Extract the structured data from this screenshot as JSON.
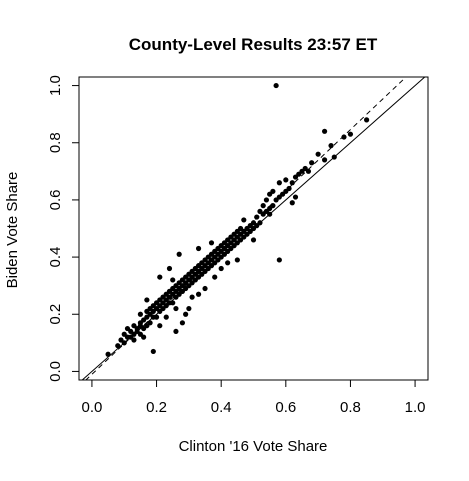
{
  "chart_data": {
    "type": "scatter",
    "title": "County-Level Results 23:57 ET",
    "xlabel": "Clinton '16 Vote Share",
    "ylabel": "Biden Vote Share",
    "xlim": [
      -0.04,
      1.04
    ],
    "ylim": [
      -0.03,
      1.03
    ],
    "x_ticks": [
      0.0,
      0.2,
      0.4,
      0.6,
      0.8,
      1.0
    ],
    "x_tick_labels": [
      "0.0",
      "0.2",
      "0.4",
      "0.6",
      "0.8",
      "1.0"
    ],
    "y_ticks": [
      0.0,
      0.2,
      0.4,
      0.6,
      0.8,
      1.0
    ],
    "y_tick_labels": [
      "0.0",
      "0.2",
      "0.4",
      "0.6",
      "0.8",
      "1.0"
    ],
    "grid": false,
    "legend": "none",
    "reference_lines": [
      {
        "style": "solid",
        "intercept": 0,
        "slope": 1
      },
      {
        "style": "dashed",
        "intercept": -0.01,
        "slope": 1.07
      }
    ],
    "point_color": "#000000",
    "points": [
      {
        "x": 0.05,
        "y": 0.06
      },
      {
        "x": 0.08,
        "y": 0.09
      },
      {
        "x": 0.09,
        "y": 0.11
      },
      {
        "x": 0.1,
        "y": 0.1
      },
      {
        "x": 0.1,
        "y": 0.13
      },
      {
        "x": 0.11,
        "y": 0.12
      },
      {
        "x": 0.11,
        "y": 0.15
      },
      {
        "x": 0.12,
        "y": 0.12
      },
      {
        "x": 0.12,
        "y": 0.14
      },
      {
        "x": 0.13,
        "y": 0.13
      },
      {
        "x": 0.13,
        "y": 0.16
      },
      {
        "x": 0.14,
        "y": 0.14
      },
      {
        "x": 0.14,
        "y": 0.15
      },
      {
        "x": 0.15,
        "y": 0.13
      },
      {
        "x": 0.15,
        "y": 0.16
      },
      {
        "x": 0.15,
        "y": 0.17
      },
      {
        "x": 0.16,
        "y": 0.15
      },
      {
        "x": 0.16,
        "y": 0.18
      },
      {
        "x": 0.17,
        "y": 0.16
      },
      {
        "x": 0.17,
        "y": 0.19
      },
      {
        "x": 0.17,
        "y": 0.21
      },
      {
        "x": 0.18,
        "y": 0.17
      },
      {
        "x": 0.18,
        "y": 0.2
      },
      {
        "x": 0.18,
        "y": 0.22
      },
      {
        "x": 0.19,
        "y": 0.19
      },
      {
        "x": 0.19,
        "y": 0.21
      },
      {
        "x": 0.19,
        "y": 0.23
      },
      {
        "x": 0.2,
        "y": 0.19
      },
      {
        "x": 0.2,
        "y": 0.22
      },
      {
        "x": 0.2,
        "y": 0.24
      },
      {
        "x": 0.21,
        "y": 0.21
      },
      {
        "x": 0.21,
        "y": 0.23
      },
      {
        "x": 0.21,
        "y": 0.25
      },
      {
        "x": 0.22,
        "y": 0.22
      },
      {
        "x": 0.22,
        "y": 0.24
      },
      {
        "x": 0.22,
        "y": 0.26
      },
      {
        "x": 0.23,
        "y": 0.23
      },
      {
        "x": 0.23,
        "y": 0.25
      },
      {
        "x": 0.23,
        "y": 0.27
      },
      {
        "x": 0.24,
        "y": 0.24
      },
      {
        "x": 0.24,
        "y": 0.26
      },
      {
        "x": 0.24,
        "y": 0.28
      },
      {
        "x": 0.25,
        "y": 0.24
      },
      {
        "x": 0.25,
        "y": 0.27
      },
      {
        "x": 0.25,
        "y": 0.29
      },
      {
        "x": 0.26,
        "y": 0.26
      },
      {
        "x": 0.26,
        "y": 0.28
      },
      {
        "x": 0.26,
        "y": 0.3
      },
      {
        "x": 0.27,
        "y": 0.27
      },
      {
        "x": 0.27,
        "y": 0.29
      },
      {
        "x": 0.27,
        "y": 0.31
      },
      {
        "x": 0.28,
        "y": 0.28
      },
      {
        "x": 0.28,
        "y": 0.3
      },
      {
        "x": 0.28,
        "y": 0.32
      },
      {
        "x": 0.29,
        "y": 0.29
      },
      {
        "x": 0.29,
        "y": 0.31
      },
      {
        "x": 0.29,
        "y": 0.33
      },
      {
        "x": 0.3,
        "y": 0.3
      },
      {
        "x": 0.3,
        "y": 0.32
      },
      {
        "x": 0.3,
        "y": 0.34
      },
      {
        "x": 0.31,
        "y": 0.31
      },
      {
        "x": 0.31,
        "y": 0.33
      },
      {
        "x": 0.31,
        "y": 0.35
      },
      {
        "x": 0.32,
        "y": 0.32
      },
      {
        "x": 0.32,
        "y": 0.34
      },
      {
        "x": 0.32,
        "y": 0.36
      },
      {
        "x": 0.33,
        "y": 0.33
      },
      {
        "x": 0.33,
        "y": 0.35
      },
      {
        "x": 0.33,
        "y": 0.37
      },
      {
        "x": 0.34,
        "y": 0.34
      },
      {
        "x": 0.34,
        "y": 0.36
      },
      {
        "x": 0.34,
        "y": 0.38
      },
      {
        "x": 0.35,
        "y": 0.35
      },
      {
        "x": 0.35,
        "y": 0.37
      },
      {
        "x": 0.35,
        "y": 0.39
      },
      {
        "x": 0.36,
        "y": 0.36
      },
      {
        "x": 0.36,
        "y": 0.38
      },
      {
        "x": 0.36,
        "y": 0.4
      },
      {
        "x": 0.37,
        "y": 0.37
      },
      {
        "x": 0.37,
        "y": 0.39
      },
      {
        "x": 0.37,
        "y": 0.41
      },
      {
        "x": 0.38,
        "y": 0.38
      },
      {
        "x": 0.38,
        "y": 0.4
      },
      {
        "x": 0.38,
        "y": 0.42
      },
      {
        "x": 0.39,
        "y": 0.39
      },
      {
        "x": 0.39,
        "y": 0.41
      },
      {
        "x": 0.39,
        "y": 0.43
      },
      {
        "x": 0.4,
        "y": 0.4
      },
      {
        "x": 0.4,
        "y": 0.42
      },
      {
        "x": 0.4,
        "y": 0.44
      },
      {
        "x": 0.41,
        "y": 0.41
      },
      {
        "x": 0.41,
        "y": 0.43
      },
      {
        "x": 0.41,
        "y": 0.45
      },
      {
        "x": 0.42,
        "y": 0.42
      },
      {
        "x": 0.42,
        "y": 0.44
      },
      {
        "x": 0.42,
        "y": 0.46
      },
      {
        "x": 0.43,
        "y": 0.43
      },
      {
        "x": 0.43,
        "y": 0.45
      },
      {
        "x": 0.43,
        "y": 0.47
      },
      {
        "x": 0.44,
        "y": 0.44
      },
      {
        "x": 0.44,
        "y": 0.46
      },
      {
        "x": 0.44,
        "y": 0.48
      },
      {
        "x": 0.45,
        "y": 0.45
      },
      {
        "x": 0.45,
        "y": 0.47
      },
      {
        "x": 0.45,
        "y": 0.49
      },
      {
        "x": 0.46,
        "y": 0.46
      },
      {
        "x": 0.46,
        "y": 0.48
      },
      {
        "x": 0.46,
        "y": 0.5
      },
      {
        "x": 0.47,
        "y": 0.47
      },
      {
        "x": 0.47,
        "y": 0.49
      },
      {
        "x": 0.48,
        "y": 0.48
      },
      {
        "x": 0.48,
        "y": 0.5
      },
      {
        "x": 0.49,
        "y": 0.49
      },
      {
        "x": 0.49,
        "y": 0.51
      },
      {
        "x": 0.5,
        "y": 0.5
      },
      {
        "x": 0.5,
        "y": 0.52
      },
      {
        "x": 0.51,
        "y": 0.51
      },
      {
        "x": 0.51,
        "y": 0.54
      },
      {
        "x": 0.52,
        "y": 0.52
      },
      {
        "x": 0.52,
        "y": 0.56
      },
      {
        "x": 0.53,
        "y": 0.55
      },
      {
        "x": 0.53,
        "y": 0.58
      },
      {
        "x": 0.54,
        "y": 0.56
      },
      {
        "x": 0.54,
        "y": 0.6
      },
      {
        "x": 0.55,
        "y": 0.57
      },
      {
        "x": 0.55,
        "y": 0.62
      },
      {
        "x": 0.56,
        "y": 0.58
      },
      {
        "x": 0.56,
        "y": 0.63
      },
      {
        "x": 0.57,
        "y": 0.6
      },
      {
        "x": 0.58,
        "y": 0.61
      },
      {
        "x": 0.58,
        "y": 0.66
      },
      {
        "x": 0.59,
        "y": 0.62
      },
      {
        "x": 0.6,
        "y": 0.63
      },
      {
        "x": 0.6,
        "y": 0.67
      },
      {
        "x": 0.61,
        "y": 0.64
      },
      {
        "x": 0.62,
        "y": 0.66
      },
      {
        "x": 0.63,
        "y": 0.68
      },
      {
        "x": 0.64,
        "y": 0.69
      },
      {
        "x": 0.65,
        "y": 0.7
      },
      {
        "x": 0.66,
        "y": 0.71
      },
      {
        "x": 0.67,
        "y": 0.7
      },
      {
        "x": 0.68,
        "y": 0.73
      },
      {
        "x": 0.7,
        "y": 0.76
      },
      {
        "x": 0.72,
        "y": 0.74
      },
      {
        "x": 0.74,
        "y": 0.79
      },
      {
        "x": 0.75,
        "y": 0.75
      },
      {
        "x": 0.78,
        "y": 0.82
      },
      {
        "x": 0.8,
        "y": 0.83
      },
      {
        "x": 0.72,
        "y": 0.84
      },
      {
        "x": 0.85,
        "y": 0.88
      },
      {
        "x": 0.57,
        "y": 1.0
      },
      {
        "x": 0.58,
        "y": 0.39
      },
      {
        "x": 0.19,
        "y": 0.07
      },
      {
        "x": 0.21,
        "y": 0.33
      },
      {
        "x": 0.24,
        "y": 0.36
      },
      {
        "x": 0.29,
        "y": 0.2
      },
      {
        "x": 0.3,
        "y": 0.22
      },
      {
        "x": 0.28,
        "y": 0.17
      },
      {
        "x": 0.21,
        "y": 0.16
      },
      {
        "x": 0.26,
        "y": 0.14
      },
      {
        "x": 0.35,
        "y": 0.29
      },
      {
        "x": 0.38,
        "y": 0.33
      },
      {
        "x": 0.45,
        "y": 0.39
      },
      {
        "x": 0.4,
        "y": 0.36
      },
      {
        "x": 0.5,
        "y": 0.46
      },
      {
        "x": 0.33,
        "y": 0.27
      },
      {
        "x": 0.17,
        "y": 0.25
      },
      {
        "x": 0.27,
        "y": 0.41
      },
      {
        "x": 0.33,
        "y": 0.43
      },
      {
        "x": 0.23,
        "y": 0.19
      },
      {
        "x": 0.42,
        "y": 0.38
      },
      {
        "x": 0.55,
        "y": 0.55
      },
      {
        "x": 0.62,
        "y": 0.59
      },
      {
        "x": 0.63,
        "y": 0.61
      },
      {
        "x": 0.47,
        "y": 0.53
      },
      {
        "x": 0.37,
        "y": 0.45
      },
      {
        "x": 0.25,
        "y": 0.32
      },
      {
        "x": 0.15,
        "y": 0.2
      },
      {
        "x": 0.13,
        "y": 0.11
      },
      {
        "x": 0.16,
        "y": 0.12
      },
      {
        "x": 0.26,
        "y": 0.22
      },
      {
        "x": 0.31,
        "y": 0.26
      }
    ]
  }
}
